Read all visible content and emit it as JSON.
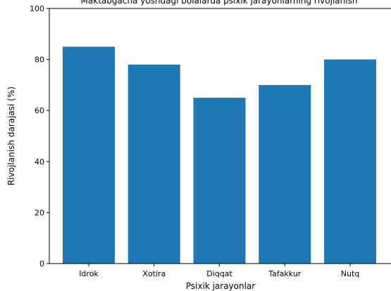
{
  "chart_data": {
    "type": "bar",
    "title": "Maktabgacha yoshdagi bolalarda psixik jarayonlarning rivojlanish",
    "xlabel": "Psixik jarayonlar",
    "ylabel": "Rivojlanish darajasi (%)",
    "categories": [
      "Idrok",
      "Xotira",
      "Diqqat",
      "Tafakkur",
      "Nutq"
    ],
    "values": [
      85,
      78,
      65,
      70,
      80
    ],
    "ylim": [
      0,
      100
    ],
    "yticks": [
      "0",
      "20",
      "40",
      "60",
      "80",
      "100"
    ],
    "bar_color": "#1f77b4",
    "grid": false
  }
}
